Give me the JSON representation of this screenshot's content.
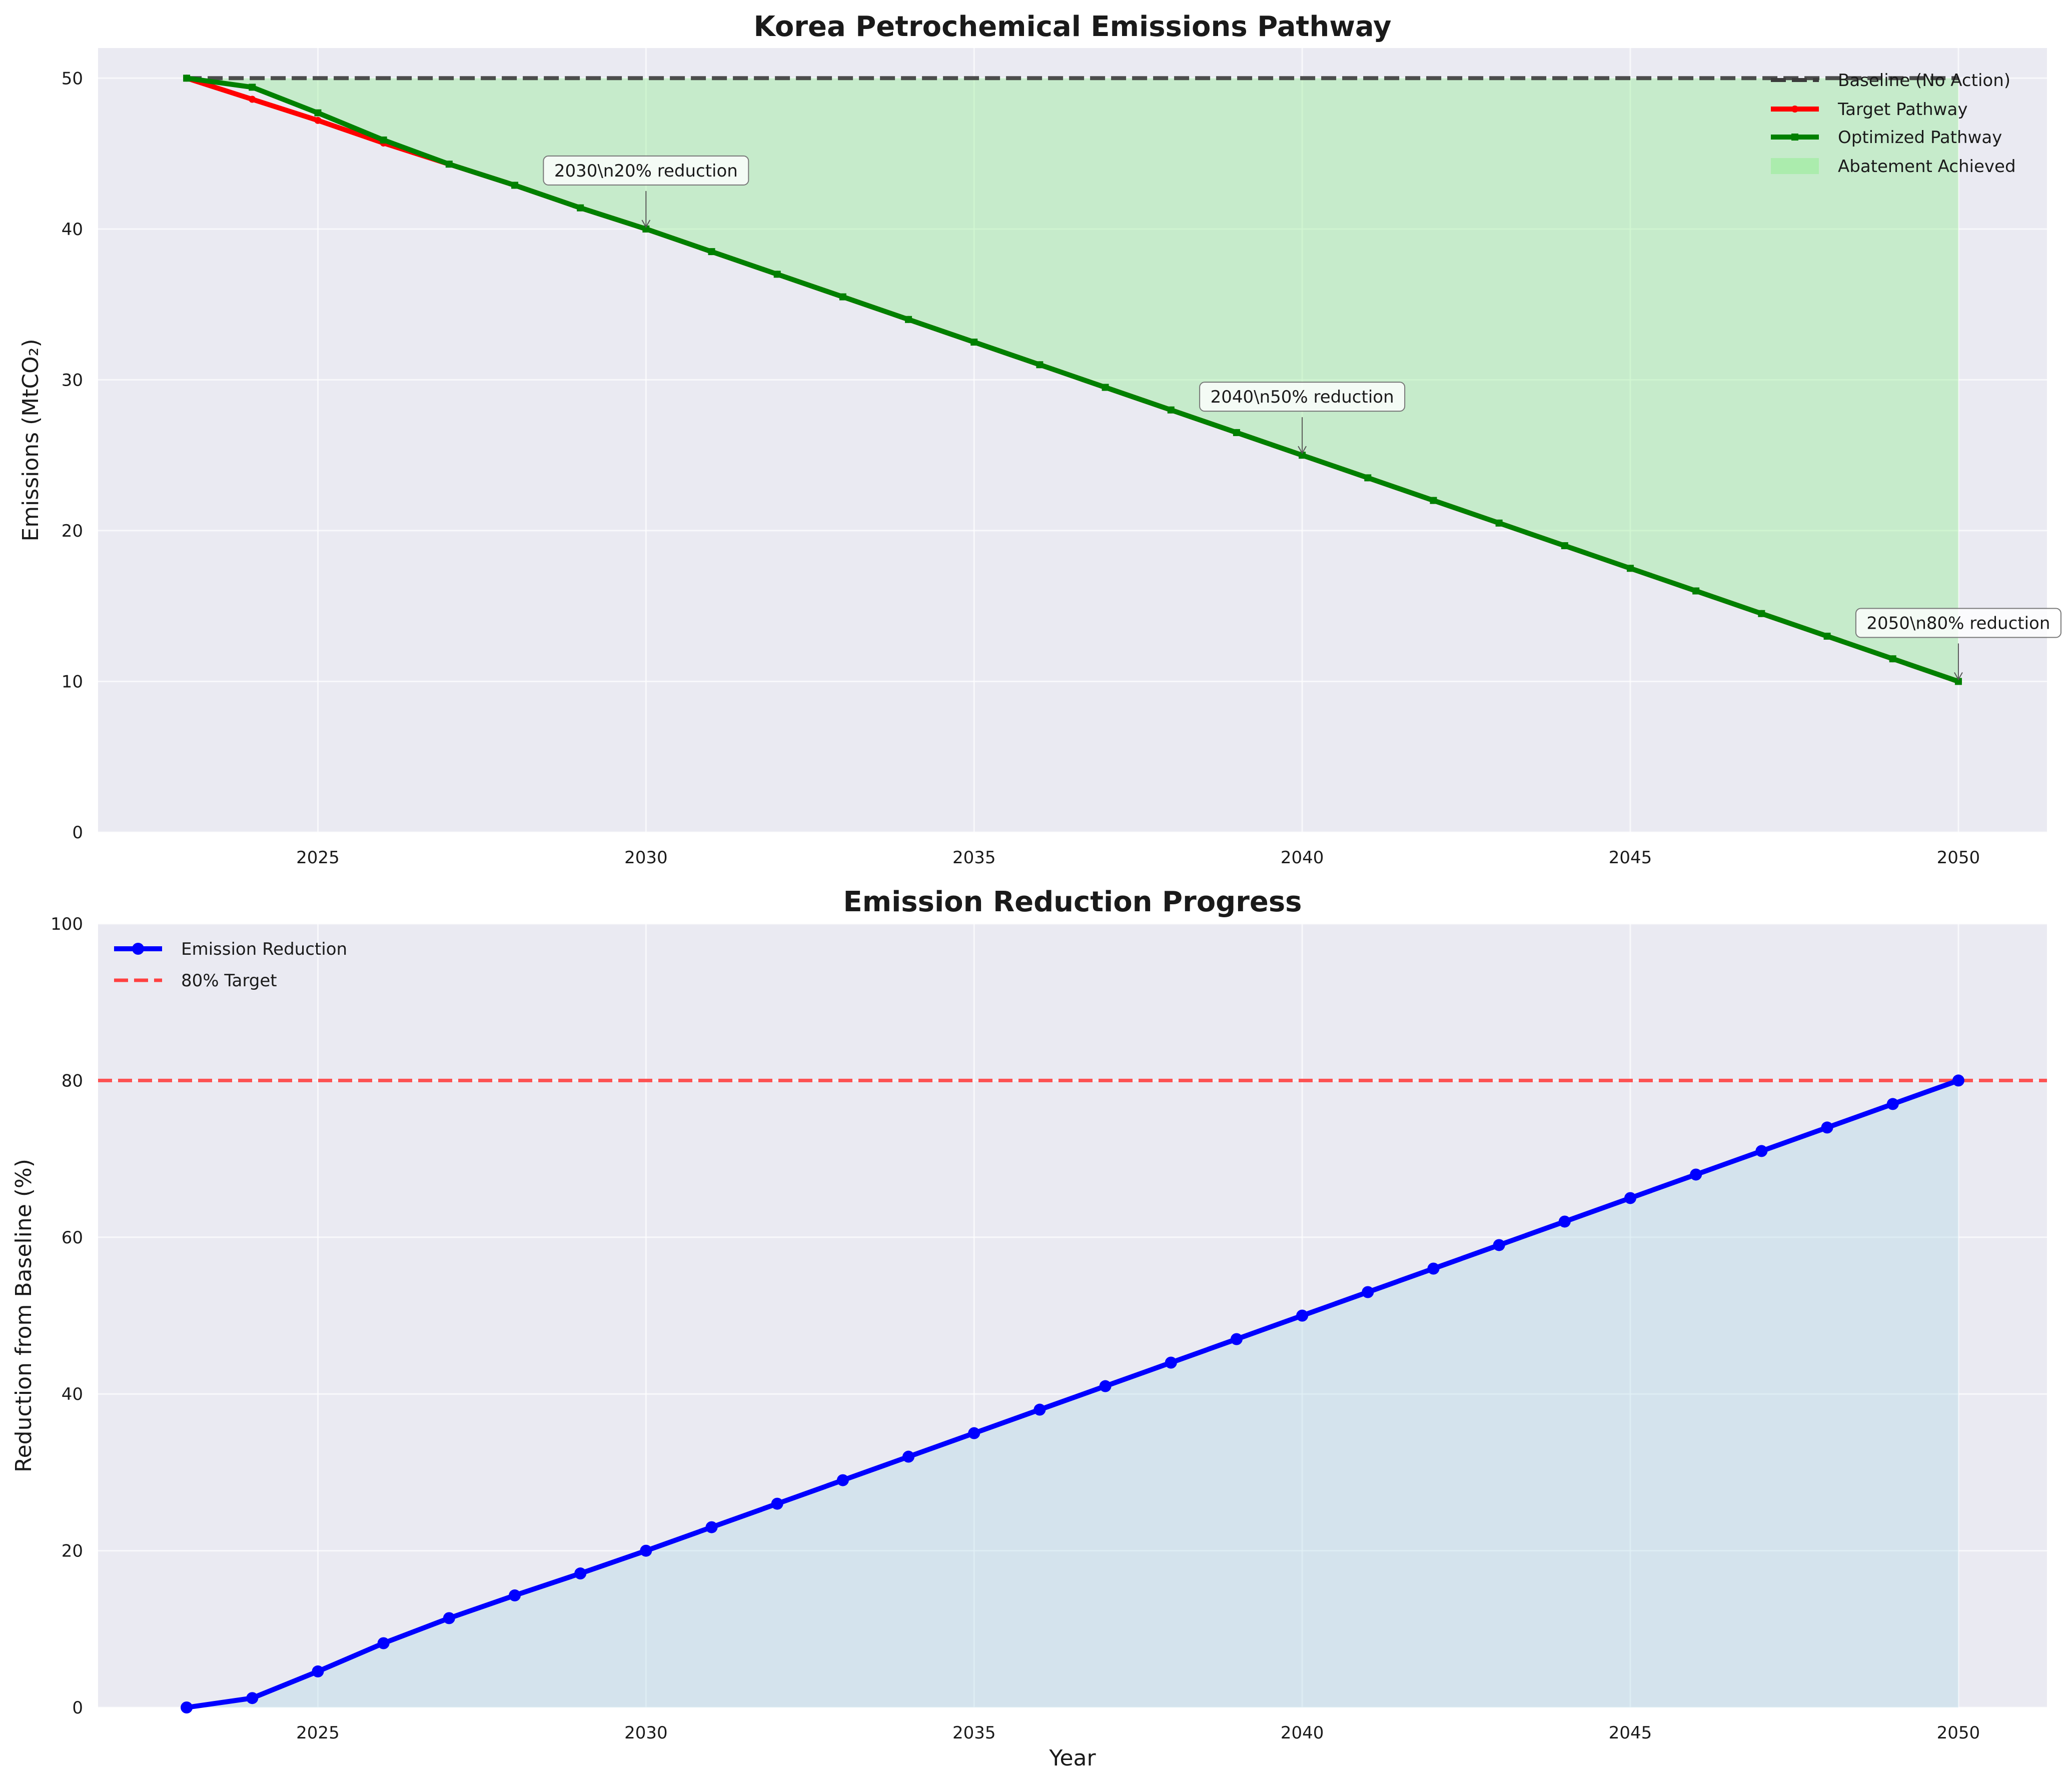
{
  "colors": {
    "background": "#eaeaf2",
    "grid": "#ffffff",
    "baseline": "#3b3b3b",
    "target": "#ff0000",
    "optimized": "#008000",
    "abatement_fill": "#90ee90",
    "reduction_line": "#0000ff",
    "reduction_fill": "#add8e6",
    "target_line": "#ff4040"
  },
  "chart_data": [
    {
      "type": "line",
      "title": "Korea Petrochemical Emissions Pathway",
      "xlabel": "",
      "ylabel": "Emissions (MtCO₂)",
      "xlim": [
        2021.65,
        2051.35
      ],
      "ylim": [
        0,
        52
      ],
      "xticks": [
        2025,
        2030,
        2035,
        2040,
        2045,
        2050
      ],
      "yticks": [
        0,
        10,
        20,
        30,
        40,
        50
      ],
      "grid": true,
      "legend_position": "top-right",
      "x": [
        2023,
        2024,
        2025,
        2026,
        2027,
        2028,
        2029,
        2030,
        2031,
        2032,
        2033,
        2034,
        2035,
        2036,
        2037,
        2038,
        2039,
        2040,
        2041,
        2042,
        2043,
        2044,
        2045,
        2046,
        2047,
        2048,
        2049,
        2050
      ],
      "series": [
        {
          "name": "Baseline (No Action)",
          "style": "dashed",
          "values": [
            50,
            50,
            50,
            50,
            50,
            50,
            50,
            50,
            50,
            50,
            50,
            50,
            50,
            50,
            50,
            50,
            50,
            50,
            50,
            50,
            50,
            50,
            50,
            50,
            50,
            50,
            50,
            50
          ]
        },
        {
          "name": "Target Pathway",
          "style": "solid-markers",
          "values": [
            50,
            48.6,
            47.2,
            45.7,
            44.3,
            42.9,
            41.4,
            40,
            38.5,
            37,
            35.5,
            34,
            32.5,
            31,
            29.5,
            28,
            26.5,
            25,
            23.5,
            22,
            20.5,
            19,
            17.5,
            16,
            14.5,
            13,
            11.5,
            10
          ]
        },
        {
          "name": "Optimized Pathway",
          "style": "solid-squares",
          "values": [
            50,
            49.4,
            47.7,
            45.9,
            44.3,
            42.9,
            41.4,
            40,
            38.5,
            37,
            35.5,
            34,
            32.5,
            31,
            29.5,
            28,
            26.5,
            25,
            23.5,
            22,
            20.5,
            19,
            17.5,
            16,
            14.5,
            13,
            11.5,
            10
          ]
        },
        {
          "name": "Abatement Achieved",
          "style": "fill-between-baseline-and-optimized"
        }
      ],
      "annotations": [
        {
          "x": 2030,
          "y": 40,
          "text": "2030\\n20% reduction"
        },
        {
          "x": 2040,
          "y": 25,
          "text": "2040\\n50% reduction"
        },
        {
          "x": 2050,
          "y": 10,
          "text": "2050\\n80% reduction"
        }
      ]
    },
    {
      "type": "line",
      "title": "Emission Reduction Progress",
      "xlabel": "Year",
      "ylabel": "Reduction from Baseline (%)",
      "xlim": [
        2021.65,
        2051.35
      ],
      "ylim": [
        0,
        100
      ],
      "xticks": [
        2025,
        2030,
        2035,
        2040,
        2045,
        2050
      ],
      "yticks": [
        0,
        20,
        40,
        60,
        80,
        100
      ],
      "grid": true,
      "legend_position": "top-left",
      "x": [
        2023,
        2024,
        2025,
        2026,
        2027,
        2028,
        2029,
        2030,
        2031,
        2032,
        2033,
        2034,
        2035,
        2036,
        2037,
        2038,
        2039,
        2040,
        2041,
        2042,
        2043,
        2044,
        2045,
        2046,
        2047,
        2048,
        2049,
        2050
      ],
      "series": [
        {
          "name": "Emission Reduction",
          "style": "solid-markers-filled",
          "values": [
            0,
            1.2,
            4.6,
            8.2,
            11.4,
            14.3,
            17.1,
            20,
            23,
            26,
            29,
            32,
            35,
            38,
            41,
            44,
            47,
            50,
            53,
            56,
            59,
            62,
            65,
            68,
            71,
            74,
            77,
            80
          ]
        },
        {
          "name": "80% Target",
          "style": "dashed-horizontal",
          "y": 80
        }
      ]
    }
  ]
}
